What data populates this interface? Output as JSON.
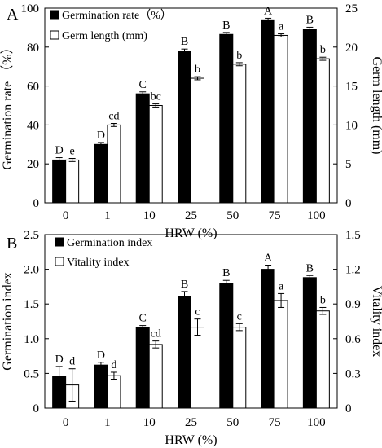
{
  "chart_data": [
    {
      "type": "bar",
      "panel_label": "A",
      "categories": [
        "0",
        "1",
        "10",
        "25",
        "50",
        "75",
        "100"
      ],
      "xlabel": "HRW (%)",
      "ylabel": "Germination rate （%）",
      "ylabel_right": "Germ length (mm)",
      "ylim": [
        0,
        100
      ],
      "yticks": [
        "0",
        "20",
        "40",
        "60",
        "80",
        "100"
      ],
      "ylim_right": [
        0,
        25
      ],
      "yticks_right": [
        "0",
        "5",
        "10",
        "15",
        "20",
        "25"
      ],
      "legend_position": "top-left",
      "series": [
        {
          "name": "Germination rate（%）",
          "axis": "left",
          "color": "#000000",
          "values": [
            22,
            30,
            56,
            78,
            86.5,
            94,
            89
          ],
          "errors": [
            1.2,
            1.0,
            1.0,
            1.0,
            1.0,
            0.8,
            1.2
          ],
          "letters": [
            "D",
            "D",
            "C",
            "B",
            "B",
            "A",
            "B"
          ]
        },
        {
          "name": "Germ length (mm)",
          "axis": "right",
          "color": "#ffffff",
          "values": [
            5.5,
            10,
            12.5,
            16,
            17.8,
            21.5,
            18.5
          ],
          "errors": [
            0.2,
            0.2,
            0.2,
            0.2,
            0.2,
            0.2,
            0.2
          ],
          "letters": [
            "e",
            "cd",
            "bc",
            "b",
            "b",
            "a",
            "b"
          ]
        }
      ]
    },
    {
      "type": "bar",
      "panel_label": "B",
      "categories": [
        "0",
        "1",
        "10",
        "25",
        "50",
        "75",
        "100"
      ],
      "xlabel": "HRW (%)",
      "ylabel": "Germination index",
      "ylabel_right": "Vitality index",
      "ylim": [
        0,
        2.5
      ],
      "yticks": [
        "0",
        "0.5",
        "1.0",
        "1.5",
        "2.0",
        "2.5"
      ],
      "ylim_right": [
        0,
        1.5
      ],
      "yticks_right": [
        "0",
        "0.3",
        "0.6",
        "0.9",
        "1.2",
        "1.5"
      ],
      "legend_position": "top-left",
      "series": [
        {
          "name": "Germination index",
          "axis": "left",
          "color": "#000000",
          "values": [
            0.46,
            0.62,
            1.16,
            1.61,
            1.8,
            2.0,
            1.88
          ],
          "errors": [
            0.14,
            0.04,
            0.03,
            0.07,
            0.04,
            0.06,
            0.03
          ],
          "letters": [
            "D",
            "D",
            "C",
            "B",
            "B",
            "A",
            "B"
          ]
        },
        {
          "name": "Vitality index",
          "axis": "right",
          "color": "#ffffff",
          "values": [
            0.2,
            0.28,
            0.55,
            0.7,
            0.7,
            0.93,
            0.84
          ],
          "errors": [
            0.14,
            0.03,
            0.03,
            0.07,
            0.03,
            0.06,
            0.03
          ],
          "letters": [
            "d",
            "d",
            "cd",
            "c",
            "c",
            "a",
            "b"
          ]
        }
      ]
    }
  ]
}
